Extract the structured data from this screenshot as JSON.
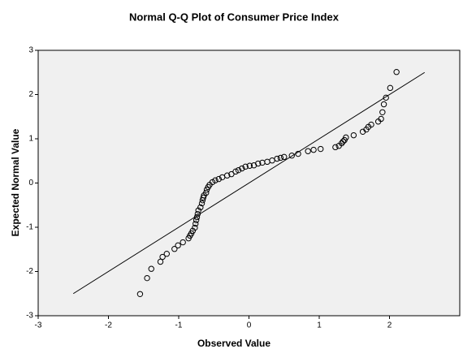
{
  "chart_data": {
    "type": "scatter",
    "title": "Normal Q-Q Plot of Consumer Price Index",
    "xlabel": "Observed Value",
    "ylabel": "Expected Normal Value",
    "xlim": [
      -3,
      3
    ],
    "ylim": [
      -3,
      3
    ],
    "xticks": [
      -3,
      -2,
      -1,
      0,
      1,
      2
    ],
    "yticks": [
      -3,
      -2,
      -1,
      0,
      1,
      2,
      3
    ],
    "color": "#000000",
    "reference_line": {
      "x": [
        -2.5,
        2.5
      ],
      "y": [
        -2.5,
        2.5
      ]
    },
    "x": [
      -1.55,
      -1.45,
      -1.39,
      -1.26,
      -1.23,
      -1.17,
      -1.06,
      -1.01,
      -0.94,
      -0.86,
      -0.84,
      -0.82,
      -0.8,
      -0.77,
      -0.76,
      -0.75,
      -0.74,
      -0.73,
      -0.72,
      -0.69,
      -0.67,
      -0.66,
      -0.65,
      -0.64,
      -0.61,
      -0.6,
      -0.58,
      -0.56,
      -0.52,
      -0.48,
      -0.43,
      -0.38,
      -0.31,
      -0.25,
      -0.19,
      -0.15,
      -0.1,
      -0.05,
      0.01,
      0.07,
      0.13,
      0.19,
      0.26,
      0.33,
      0.4,
      0.45,
      0.5,
      0.61,
      0.7,
      0.84,
      0.92,
      1.02,
      1.23,
      1.28,
      1.32,
      1.34,
      1.36,
      1.38,
      1.49,
      1.62,
      1.67,
      1.7,
      1.74,
      1.84,
      1.88,
      1.9,
      1.92,
      1.95,
      2.01,
      2.1
    ],
    "values": [
      -2.51,
      -2.15,
      -1.94,
      -1.78,
      -1.67,
      -1.6,
      -1.49,
      -1.41,
      -1.34,
      -1.25,
      -1.19,
      -1.14,
      -1.08,
      -1.01,
      -0.92,
      -0.84,
      -0.77,
      -0.7,
      -0.62,
      -0.55,
      -0.46,
      -0.39,
      -0.33,
      -0.28,
      -0.22,
      -0.15,
      -0.09,
      -0.04,
      0.02,
      0.06,
      0.09,
      0.13,
      0.17,
      0.2,
      0.26,
      0.29,
      0.33,
      0.37,
      0.39,
      0.4,
      0.44,
      0.46,
      0.48,
      0.51,
      0.55,
      0.57,
      0.59,
      0.62,
      0.66,
      0.72,
      0.75,
      0.77,
      0.81,
      0.84,
      0.9,
      0.94,
      0.97,
      1.03,
      1.08,
      1.16,
      1.21,
      1.27,
      1.32,
      1.39,
      1.45,
      1.6,
      1.78,
      1.93,
      2.15,
      2.51
    ]
  }
}
